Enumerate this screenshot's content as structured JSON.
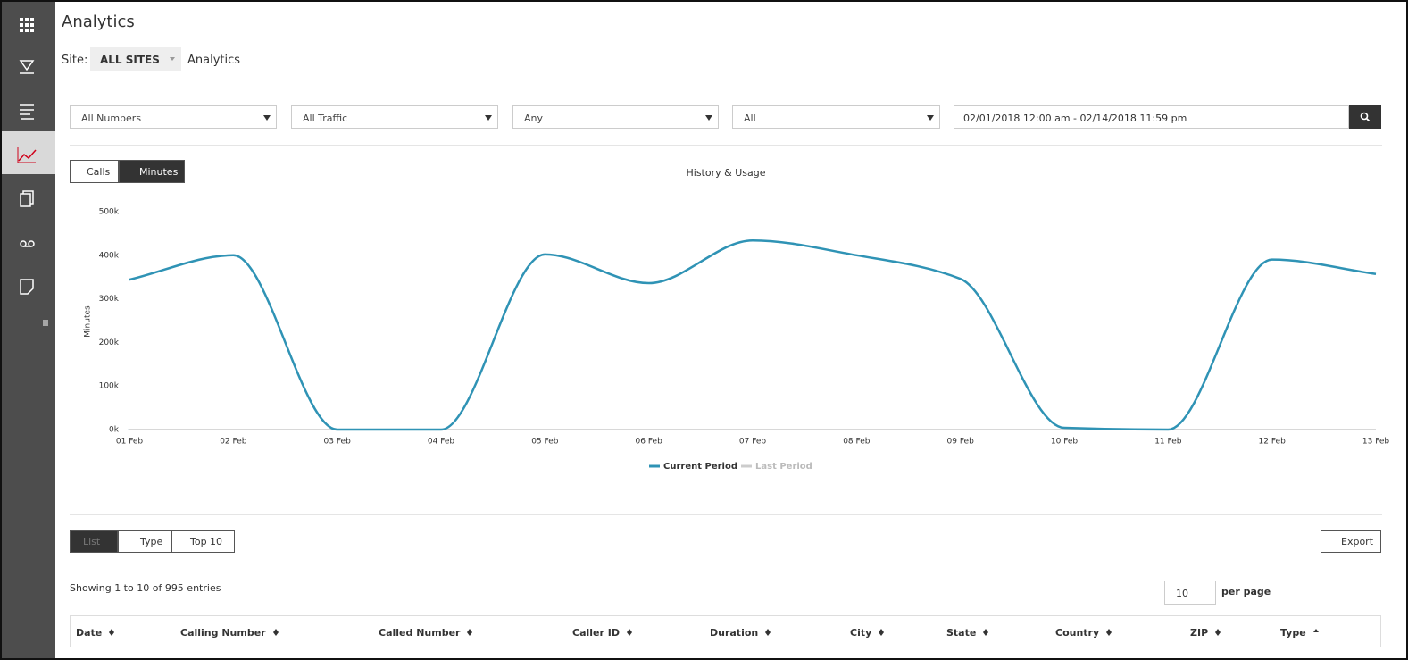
{
  "header": {
    "title": "Analytics",
    "site_label": "Site:",
    "site_value": "ALL SITES",
    "breadcrumb": "Analytics"
  },
  "filters": [
    "All Numbers",
    "All Traffic",
    "Any",
    "All",
    "02/01/2018 12:00 am - 02/14/2018 11:59 pm"
  ],
  "chart_toggle": [
    "Calls",
    "Minutes"
  ],
  "chart_data": {
    "type": "line",
    "title": "History & Usage",
    "y_label": "Minutes",
    "categories": [
      "01 Feb",
      "02 Feb",
      "03 Feb",
      "04 Feb",
      "05 Feb",
      "06 Feb",
      "07 Feb",
      "08 Feb",
      "09 Feb",
      "10 Feb",
      "11 Feb",
      "12 Feb",
      "13 Feb"
    ],
    "series": [
      {
        "name": "Current Period",
        "color": "#2f93b5",
        "values": [
          344000,
          400000,
          0,
          0,
          402000,
          336000,
          434000,
          400000,
          346000,
          4000,
          0,
          390000,
          357000
        ]
      },
      {
        "name": "Last Period",
        "color": "#cccccc",
        "values": [
          0,
          0,
          0,
          0,
          0,
          0,
          0,
          0,
          0,
          0,
          0,
          0,
          0
        ]
      }
    ],
    "ylim": [
      0,
      500000
    ],
    "yticks": [
      {
        "value": 0,
        "label": "0k"
      },
      {
        "value": 100000,
        "label": "100k"
      },
      {
        "value": 200000,
        "label": "200k"
      },
      {
        "value": 300000,
        "label": "300k"
      },
      {
        "value": 400000,
        "label": "400k"
      },
      {
        "value": 500000,
        "label": "500k"
      }
    ]
  },
  "table_toggle": [
    "List",
    "Type",
    "Top 10"
  ],
  "export": "Export",
  "entries_info": "Showing 1 to 10 of 995 entries",
  "per_page": {
    "value": "10",
    "label": "per page"
  },
  "table": {
    "columns": [
      "Date",
      "Calling Number",
      "Called Number",
      "Caller ID",
      "Duration",
      "City",
      "State",
      "Country",
      "ZIP",
      "Type"
    ]
  }
}
